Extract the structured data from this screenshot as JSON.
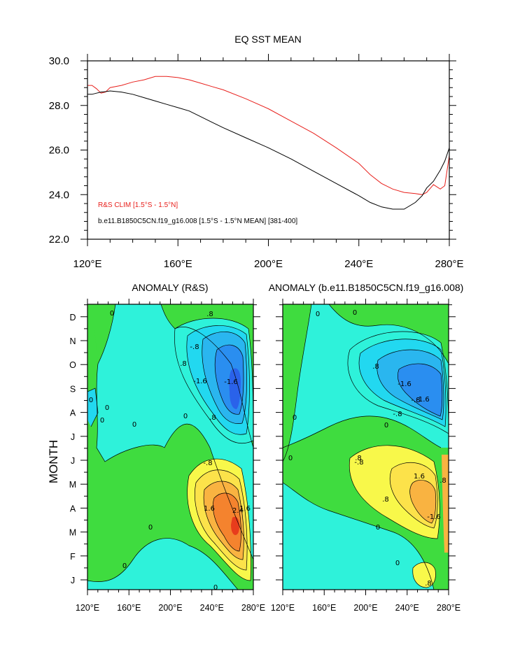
{
  "colors": {
    "red_line": "#e8201c",
    "black_line": "#000000",
    "shade_pos4": "#e83c1c",
    "shade_pos3": "#f4832e",
    "shade_pos2": "#f9b341",
    "shade_pos1": "#fce24a",
    "shade_pos0": "#f8f84a",
    "shade_zero": "#3fdc3f",
    "shade_neg0": "#2ef2da",
    "shade_neg1": "#22d8f0",
    "shade_neg2": "#2ab6ef",
    "shade_neg3": "#2a8ef0",
    "shade_neg4": "#2a62ea"
  },
  "chart_data": [
    {
      "type": "line",
      "title": "EQ SST MEAN",
      "xlabel": "",
      "ylabel": "",
      "xlim": [
        120,
        280
      ],
      "ylim": [
        22.0,
        30.0
      ],
      "x_ticks": [
        120,
        160,
        200,
        240,
        280
      ],
      "x_tick_labels": [
        "120°E",
        "160°E",
        "200°E",
        "240°E",
        "280°E"
      ],
      "y_ticks": [
        22.0,
        24.0,
        26.0,
        28.0,
        30.0
      ],
      "y_tick_labels": [
        "22.0",
        "24.0",
        "26.0",
        "28.0",
        "30.0"
      ],
      "legend_position": "bottom-left",
      "x": [
        120,
        122,
        124,
        126,
        128,
        130,
        135,
        140,
        145,
        150,
        155,
        160,
        165,
        170,
        175,
        180,
        190,
        200,
        210,
        220,
        230,
        240,
        245,
        250,
        255,
        260,
        265,
        268,
        270,
        273,
        276,
        278,
        280
      ],
      "series": [
        {
          "name": "R&S CLIM [1.5°S - 1.5°N]",
          "color": "#e8201c",
          "values": [
            28.9,
            28.9,
            28.75,
            28.55,
            28.6,
            28.8,
            28.9,
            29.05,
            29.15,
            29.3,
            29.3,
            29.25,
            29.15,
            29.0,
            28.85,
            28.7,
            28.3,
            27.85,
            27.3,
            26.75,
            26.1,
            25.4,
            24.9,
            24.5,
            24.25,
            24.1,
            24.05,
            24.0,
            24.1,
            24.45,
            24.25,
            24.4,
            25.75
          ]
        },
        {
          "name": "b.e11.B1850C5CN.f19_g16.008 [1.5°S - 1.5°N MEAN] [381-400]",
          "color": "#000000",
          "values": [
            28.5,
            28.5,
            28.55,
            28.6,
            28.62,
            28.65,
            28.6,
            28.5,
            28.35,
            28.2,
            28.05,
            27.9,
            27.75,
            27.5,
            27.25,
            27.0,
            26.55,
            26.1,
            25.6,
            25.05,
            24.5,
            23.95,
            23.65,
            23.45,
            23.35,
            23.35,
            23.65,
            23.95,
            24.3,
            24.6,
            25.1,
            25.5,
            26.1
          ]
        }
      ]
    },
    {
      "type": "heatmap",
      "title": "ANOMALY (R&S)",
      "ylabel": "MONTH",
      "xlim": [
        120,
        280
      ],
      "x_tick_labels": [
        "120°E",
        "160°E",
        "200°E",
        "240°E",
        "280°E"
      ],
      "y_tick_labels": [
        "J",
        "F",
        "M",
        "A",
        "M",
        "J",
        "J",
        "A",
        "S",
        "O",
        "N",
        "D"
      ],
      "contour_labels": [
        "0",
        "0",
        "0",
        "0",
        "0",
        "0",
        "0",
        "0",
        "0",
        ".8",
        ".8",
        ".8",
        "-.8",
        "-.8",
        "-1.6",
        "-1.6",
        "1.6",
        "2.4",
        "1.6"
      ]
    },
    {
      "type": "heatmap",
      "title": "ANOMALY (b.e11.B1850C5CN.f19_g16.008)",
      "xlim": [
        120,
        280
      ],
      "x_tick_labels": [
        "120°E",
        "160°E",
        "200°E",
        "240°E",
        "280°E"
      ],
      "contour_labels": [
        "0",
        "0",
        "0",
        "0",
        "0",
        "0",
        "0",
        ".8",
        ".8",
        "-.8",
        "-.8",
        "-.8",
        "-1.6",
        "-1.6",
        ".8",
        "1.6",
        "-1.6",
        ".8",
        ".8"
      ]
    }
  ]
}
